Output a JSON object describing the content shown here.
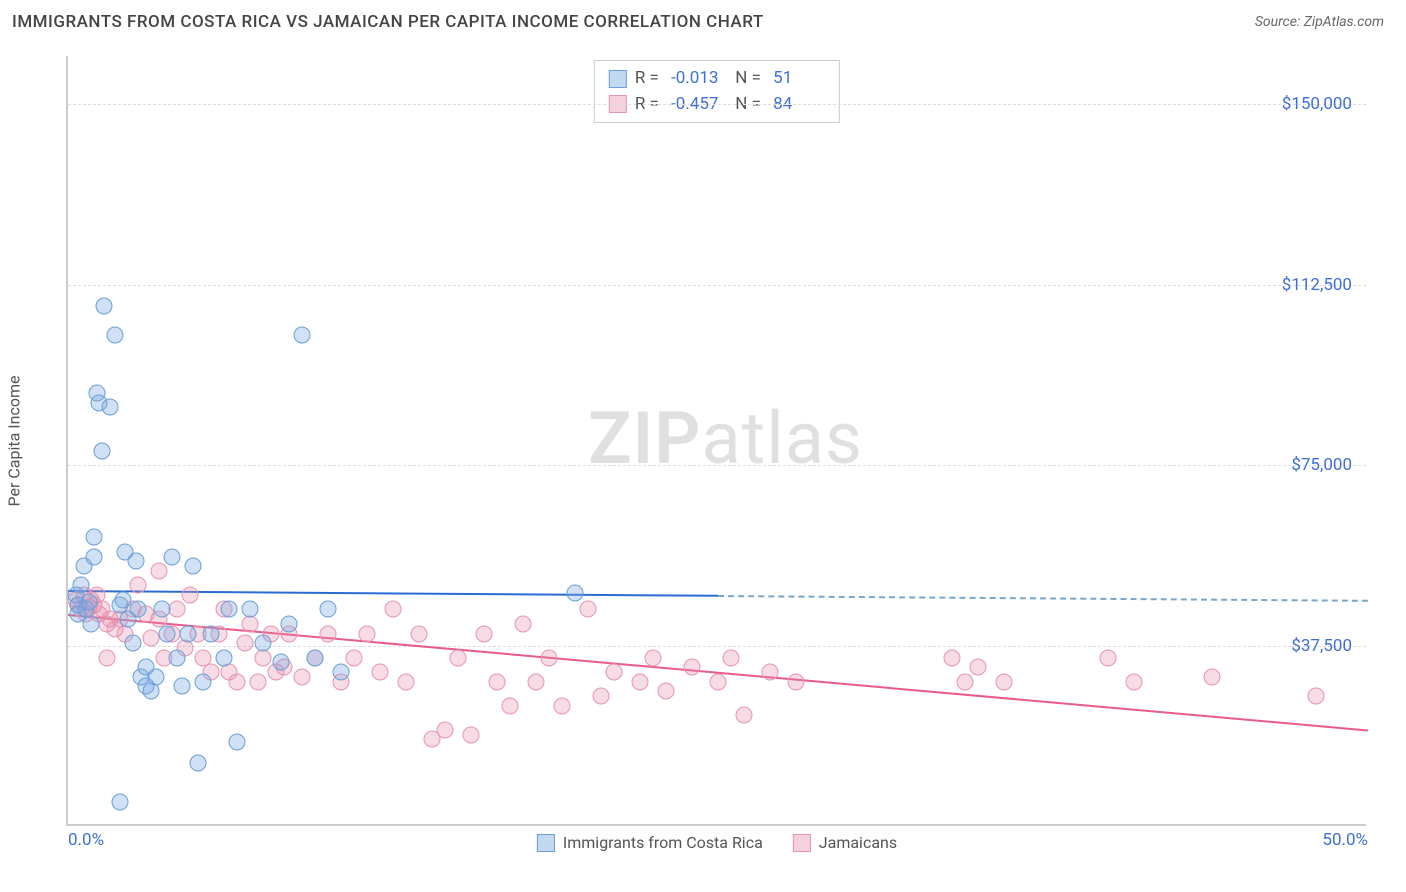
{
  "header": {
    "title": "IMMIGRANTS FROM COSTA RICA VS JAMAICAN PER CAPITA INCOME CORRELATION CHART",
    "source": "Source: ZipAtlas.com"
  },
  "watermark": {
    "prefix": "ZIP",
    "suffix": "atlas"
  },
  "chart": {
    "type": "scatter",
    "ylabel": "Per Capita Income",
    "xlim": [
      0,
      50
    ],
    "ylim": [
      0,
      160000
    ],
    "xticks": [
      {
        "v": 0,
        "label": "0.0%"
      },
      {
        "v": 50,
        "label": "50.0%"
      }
    ],
    "yticks": [
      {
        "v": 37500,
        "label": "$37,500"
      },
      {
        "v": 75000,
        "label": "$75,000"
      },
      {
        "v": 112500,
        "label": "$112,500"
      },
      {
        "v": 150000,
        "label": "$150,000"
      }
    ],
    "grid_color": "#dddddd",
    "background_color": "#ffffff",
    "marker_radius": 8.5,
    "series": [
      {
        "name": "Immigrants from Costa Rica",
        "color_fill": "rgba(120,170,225,0.35)",
        "color_stroke": "#6a9fd8",
        "reg_color": "#2b6cd4",
        "R": "-0.013",
        "N": "51",
        "regression": {
          "x1": 0,
          "y1": 49000,
          "x2": 25,
          "y2": 48000,
          "x2_dash": 50,
          "y2_dash": 47000
        },
        "points": [
          [
            0.3,
            48000
          ],
          [
            0.4,
            46000
          ],
          [
            0.4,
            44000
          ],
          [
            0.5,
            50000
          ],
          [
            0.6,
            54000
          ],
          [
            0.7,
            45000
          ],
          [
            0.8,
            46500
          ],
          [
            0.9,
            42000
          ],
          [
            1.0,
            60000
          ],
          [
            1.0,
            56000
          ],
          [
            1.1,
            90000
          ],
          [
            1.2,
            88000
          ],
          [
            1.3,
            78000
          ],
          [
            1.4,
            108000
          ],
          [
            1.6,
            87000
          ],
          [
            1.8,
            102000
          ],
          [
            2.0,
            46000
          ],
          [
            2.1,
            47000
          ],
          [
            2.2,
            57000
          ],
          [
            2.3,
            43000
          ],
          [
            2.5,
            38000
          ],
          [
            2.6,
            55000
          ],
          [
            2.7,
            45000
          ],
          [
            2.8,
            31000
          ],
          [
            3.0,
            33000
          ],
          [
            3.0,
            29000
          ],
          [
            3.2,
            28000
          ],
          [
            3.4,
            31000
          ],
          [
            3.6,
            45000
          ],
          [
            3.8,
            40000
          ],
          [
            4.0,
            56000
          ],
          [
            4.2,
            35000
          ],
          [
            4.4,
            29000
          ],
          [
            4.6,
            40000
          ],
          [
            4.8,
            54000
          ],
          [
            5.0,
            13000
          ],
          [
            5.2,
            30000
          ],
          [
            5.5,
            40000
          ],
          [
            6.0,
            35000
          ],
          [
            6.2,
            45000
          ],
          [
            6.5,
            17500
          ],
          [
            7.0,
            45000
          ],
          [
            7.5,
            38000
          ],
          [
            8.2,
            34000
          ],
          [
            8.5,
            42000
          ],
          [
            9.0,
            102000
          ],
          [
            9.5,
            35000
          ],
          [
            10.0,
            45000
          ],
          [
            10.5,
            32000
          ],
          [
            19.5,
            48500
          ],
          [
            2.0,
            5000
          ]
        ]
      },
      {
        "name": "Jamaicans",
        "color_fill": "rgba(230,140,170,0.3)",
        "color_stroke": "#e893b0",
        "reg_color": "#e85b8a",
        "R": "-0.457",
        "N": "84",
        "regression": {
          "x1": 0,
          "y1": 44000,
          "x2": 50,
          "y2": 20000
        },
        "points": [
          [
            0.3,
            47000
          ],
          [
            0.4,
            46000
          ],
          [
            0.5,
            45000
          ],
          [
            0.6,
            48000
          ],
          [
            0.7,
            44000
          ],
          [
            0.8,
            45500
          ],
          [
            0.9,
            47000
          ],
          [
            1.0,
            46000
          ],
          [
            1.1,
            48000
          ],
          [
            1.2,
            44000
          ],
          [
            1.3,
            45000
          ],
          [
            1.5,
            42000
          ],
          [
            1.6,
            43000
          ],
          [
            1.8,
            41000
          ],
          [
            2.0,
            43000
          ],
          [
            2.2,
            40000
          ],
          [
            2.5,
            45000
          ],
          [
            2.7,
            50000
          ],
          [
            3.0,
            44000
          ],
          [
            3.2,
            39000
          ],
          [
            3.5,
            43000
          ],
          [
            3.7,
            35000
          ],
          [
            4.0,
            40000
          ],
          [
            4.2,
            45000
          ],
          [
            4.5,
            37000
          ],
          [
            4.7,
            48000
          ],
          [
            5.0,
            40000
          ],
          [
            5.2,
            35000
          ],
          [
            5.5,
            32000
          ],
          [
            5.8,
            40000
          ],
          [
            6.0,
            45000
          ],
          [
            6.2,
            32000
          ],
          [
            6.5,
            30000
          ],
          [
            6.8,
            38000
          ],
          [
            7.0,
            42000
          ],
          [
            7.3,
            30000
          ],
          [
            7.5,
            35000
          ],
          [
            7.8,
            40000
          ],
          [
            8.0,
            32000
          ],
          [
            8.3,
            33000
          ],
          [
            8.5,
            40000
          ],
          [
            9.0,
            31000
          ],
          [
            9.5,
            35000
          ],
          [
            10.0,
            40000
          ],
          [
            10.5,
            30000
          ],
          [
            11.0,
            35000
          ],
          [
            11.5,
            40000
          ],
          [
            12.0,
            32000
          ],
          [
            12.5,
            45000
          ],
          [
            13.0,
            30000
          ],
          [
            13.5,
            40000
          ],
          [
            14.0,
            18000
          ],
          [
            14.5,
            20000
          ],
          [
            15.0,
            35000
          ],
          [
            15.5,
            19000
          ],
          [
            16.0,
            40000
          ],
          [
            16.5,
            30000
          ],
          [
            17.0,
            25000
          ],
          [
            17.5,
            42000
          ],
          [
            18.0,
            30000
          ],
          [
            18.5,
            35000
          ],
          [
            19.0,
            25000
          ],
          [
            20.0,
            45000
          ],
          [
            20.5,
            27000
          ],
          [
            21.0,
            32000
          ],
          [
            22.0,
            30000
          ],
          [
            22.5,
            35000
          ],
          [
            23.0,
            28000
          ],
          [
            24.0,
            33000
          ],
          [
            25.0,
            30000
          ],
          [
            25.5,
            35000
          ],
          [
            26.0,
            23000
          ],
          [
            27.0,
            32000
          ],
          [
            28.0,
            30000
          ],
          [
            34.0,
            35000
          ],
          [
            34.5,
            30000
          ],
          [
            35.0,
            33000
          ],
          [
            36.0,
            30000
          ],
          [
            40.0,
            35000
          ],
          [
            41.0,
            30000
          ],
          [
            44.0,
            31000
          ],
          [
            48.0,
            27000
          ],
          [
            3.5,
            53000
          ],
          [
            1.5,
            35000
          ]
        ]
      }
    ],
    "legend_bottom": [
      {
        "swatch": "blue",
        "label": "Immigrants from Costa Rica"
      },
      {
        "swatch": "pink",
        "label": "Jamaicans"
      }
    ]
  }
}
